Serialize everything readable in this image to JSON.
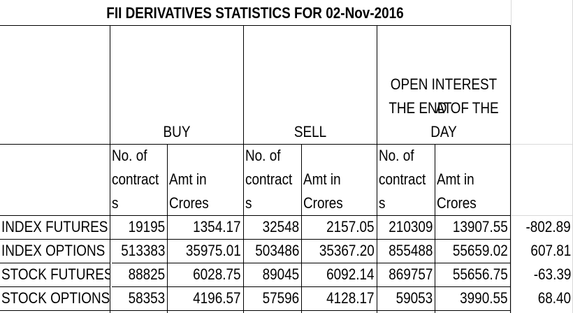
{
  "title": "FII DERIVATIVES STATISTICS FOR 02-Nov-2016",
  "groups": {
    "buy": "BUY",
    "sell": "SELL",
    "oi_line1": "OPEN INTEREST AT",
    "oi_line2": "THE END OF THE",
    "oi_line3": "DAY"
  },
  "subheaders": {
    "contracts_l1": "No. of",
    "contracts_l2": "contract",
    "contracts_l3": "s",
    "amt_l1": "Amt in",
    "amt_l2": "Crores"
  },
  "rows": [
    {
      "label": "INDEX FUTURES",
      "buy_contracts": "19195",
      "buy_amt": "1354.17",
      "sell_contracts": "32548",
      "sell_amt": "2157.05",
      "oi_contracts": "210309",
      "oi_amt": "13907.55",
      "net": "-802.89"
    },
    {
      "label": "INDEX OPTIONS",
      "buy_contracts": "513383",
      "buy_amt": "35975.01",
      "sell_contracts": "503486",
      "sell_amt": "35367.20",
      "oi_contracts": "855488",
      "oi_amt": "55659.02",
      "net": "607.81"
    },
    {
      "label": "STOCK FUTURES",
      "buy_contracts": "88825",
      "buy_amt": "6028.75",
      "sell_contracts": "89045",
      "sell_amt": "6092.14",
      "oi_contracts": "869757",
      "oi_amt": "55656.75",
      "net": "-63.39"
    },
    {
      "label": "STOCK OPTIONS",
      "buy_contracts": "58353",
      "buy_amt": "4196.57",
      "sell_contracts": "57596",
      "sell_amt": "4128.17",
      "oi_contracts": "59053",
      "oi_amt": "3990.55",
      "net": "68.40"
    }
  ]
}
